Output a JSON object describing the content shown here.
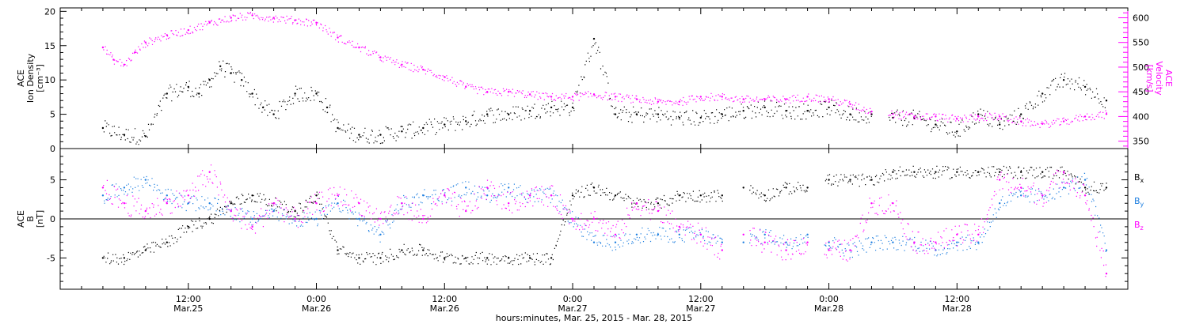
{
  "chart_data": [
    {
      "type": "scatter",
      "panel": "top",
      "y_left_label_lines": [
        "ACE",
        "Ion Density",
        "[cm⁻³]"
      ],
      "y_right_label_lines": [
        "ACE",
        "Velocity",
        "[km/s]"
      ],
      "y_left_ticks": [
        "0",
        "5",
        "10",
        "15",
        "20"
      ],
      "y_left_lim": [
        0,
        20.5
      ],
      "y_right_ticks": [
        "350",
        "400",
        "450",
        "500",
        "550",
        "600"
      ],
      "y_right_lim": [
        335,
        620
      ],
      "series": [
        {
          "axis": "left",
          "color": "#000000",
          "x": [
            0,
            2,
            4,
            6,
            8,
            9,
            10,
            11,
            12,
            13,
            14,
            15,
            16,
            18,
            20,
            21,
            22,
            24,
            26,
            28,
            30,
            32,
            34,
            36,
            38,
            40,
            42,
            44,
            46,
            48,
            50,
            52,
            54,
            56,
            58,
            60,
            62,
            64,
            66,
            68,
            70,
            72,
            74,
            76,
            78,
            80,
            82,
            84,
            86,
            88,
            90,
            92,
            94
          ],
          "y": [
            3,
            2,
            1.8,
            8,
            9,
            8,
            10,
            12,
            11,
            10,
            8,
            6,
            5,
            8,
            8,
            6,
            3,
            2,
            2,
            2.5,
            3,
            3.5,
            4,
            5,
            5,
            5.5,
            6,
            6,
            16,
            5,
            5,
            5,
            4.5,
            4.5,
            5,
            5.5,
            6,
            5.5,
            5.5,
            6,
            5,
            5,
            4.5,
            4.5,
            3.5,
            2.5,
            5,
            3.5,
            5,
            8,
            10,
            9,
            7
          ]
        },
        {
          "axis": "right",
          "color": "#ff00ff",
          "x": [
            0,
            1,
            2,
            3,
            4,
            6,
            8,
            10,
            12,
            14,
            16,
            18,
            20,
            22,
            24,
            26,
            28,
            30,
            32,
            34,
            36,
            38,
            40,
            42,
            44,
            46,
            48,
            50,
            52,
            54,
            56,
            58,
            60,
            62,
            64,
            66,
            68,
            70,
            72,
            74,
            76,
            78,
            80,
            82,
            84,
            86,
            88,
            90,
            92,
            94
          ],
          "y": [
            540,
            515,
            505,
            530,
            550,
            565,
            575,
            590,
            600,
            605,
            600,
            595,
            590,
            560,
            540,
            520,
            505,
            495,
            480,
            460,
            450,
            450,
            445,
            440,
            440,
            445,
            440,
            435,
            430,
            430,
            440,
            440,
            435,
            435,
            435,
            440,
            435,
            425,
            410,
            405,
            400,
            400,
            395,
            400,
            400,
            390,
            385,
            390,
            400,
            405
          ]
        }
      ]
    },
    {
      "type": "scatter",
      "panel": "bottom",
      "y_label_lines": [
        "ACE",
        "B",
        "[nT]"
      ],
      "y_ticks": [
        "-5",
        "0",
        "5"
      ],
      "y_lim": [
        -9,
        9
      ],
      "legend": [
        {
          "text": "B",
          "sub": "x",
          "color": "#000000"
        },
        {
          "text": "B",
          "sub": "y",
          "color": "#1e7fe0"
        },
        {
          "text": "B",
          "sub": "z",
          "color": "#ff00ff"
        }
      ],
      "series": [
        {
          "name": "Bx",
          "color": "#000000",
          "x": [
            0,
            2,
            4,
            6,
            8,
            10,
            12,
            14,
            16,
            18,
            20,
            22,
            24,
            26,
            28,
            30,
            32,
            34,
            36,
            38,
            40,
            42,
            44,
            46,
            48,
            50,
            52,
            54,
            56,
            58,
            60,
            62,
            64,
            66,
            68,
            70,
            72,
            74,
            76,
            78,
            80,
            82,
            84,
            86,
            88,
            90,
            92,
            94
          ],
          "y": [
            -5,
            -5,
            -4,
            -3,
            -1,
            0,
            2,
            3,
            2,
            1,
            3,
            -4,
            -5,
            -5,
            -4,
            -4,
            -5,
            -5,
            -5,
            -5,
            -5,
            -5,
            3,
            4,
            3,
            2,
            2,
            3,
            3,
            3,
            4,
            3,
            4,
            4,
            5,
            5,
            5,
            6,
            6,
            6,
            6,
            6,
            6,
            6,
            6,
            6,
            4,
            4
          ]
        },
        {
          "name": "By",
          "color": "#1e7fe0",
          "x": [
            0,
            2,
            4,
            6,
            8,
            10,
            12,
            14,
            16,
            18,
            20,
            22,
            24,
            26,
            28,
            30,
            32,
            34,
            36,
            38,
            40,
            42,
            44,
            46,
            48,
            50,
            52,
            54,
            56,
            58,
            60,
            62,
            64,
            66,
            68,
            70,
            72,
            74,
            76,
            78,
            80,
            82,
            84,
            86,
            88,
            90,
            92,
            94
          ],
          "y": [
            3,
            4,
            5,
            3,
            2,
            2,
            1,
            0,
            1,
            0,
            0,
            2,
            0,
            -2,
            2,
            3,
            3,
            4,
            3,
            4,
            3,
            3,
            0,
            -3,
            -3,
            -2,
            -2,
            -2,
            -2,
            -3,
            -3,
            -2,
            -3,
            -2,
            -3,
            -4,
            -3,
            -3,
            -3,
            -4,
            -3,
            -3,
            2,
            3,
            3,
            4,
            5,
            -4
          ]
        },
        {
          "name": "Bz",
          "color": "#ff00ff",
          "x": [
            0,
            2,
            4,
            6,
            8,
            10,
            12,
            14,
            16,
            18,
            20,
            22,
            24,
            26,
            28,
            30,
            32,
            34,
            36,
            38,
            40,
            42,
            44,
            46,
            48,
            50,
            52,
            54,
            56,
            58,
            60,
            62,
            64,
            66,
            68,
            70,
            72,
            74,
            76,
            78,
            80,
            82,
            84,
            86,
            88,
            90,
            92,
            94
          ],
          "y": [
            4,
            2,
            1,
            2,
            3,
            6,
            1,
            -1,
            2,
            0,
            2,
            3,
            2,
            0,
            2,
            0,
            3,
            1,
            4,
            2,
            3,
            3,
            0,
            0,
            -2,
            2,
            1,
            -1,
            -2,
            -4,
            -2,
            -3,
            -4,
            -3,
            -4,
            -4,
            2,
            2,
            -3,
            -3,
            -2,
            -2,
            5,
            4,
            3,
            6,
            3,
            -7
          ]
        }
      ]
    }
  ],
  "x_axis": {
    "lim": [
      -4,
      96
    ],
    "ticks": [
      {
        "x": 8,
        "line1": "12:00",
        "line2": "Mar.25"
      },
      {
        "x": 20,
        "line1": "0:00",
        "line2": "Mar.26"
      },
      {
        "x": 32,
        "line1": "12:00",
        "line2": "Mar.26"
      },
      {
        "x": 44,
        "line1": "0:00",
        "line2": "Mar.27"
      },
      {
        "x": 56,
        "line1": "12:00",
        "line2": "Mar.27"
      },
      {
        "x": 68,
        "line1": "0:00",
        "line2": "Mar.28"
      },
      {
        "x": 80,
        "line1": "12:00",
        "line2": "Mar.28"
      }
    ],
    "label": "hours:minutes, Mar. 25, 2015 - Mar. 28, 2015"
  }
}
